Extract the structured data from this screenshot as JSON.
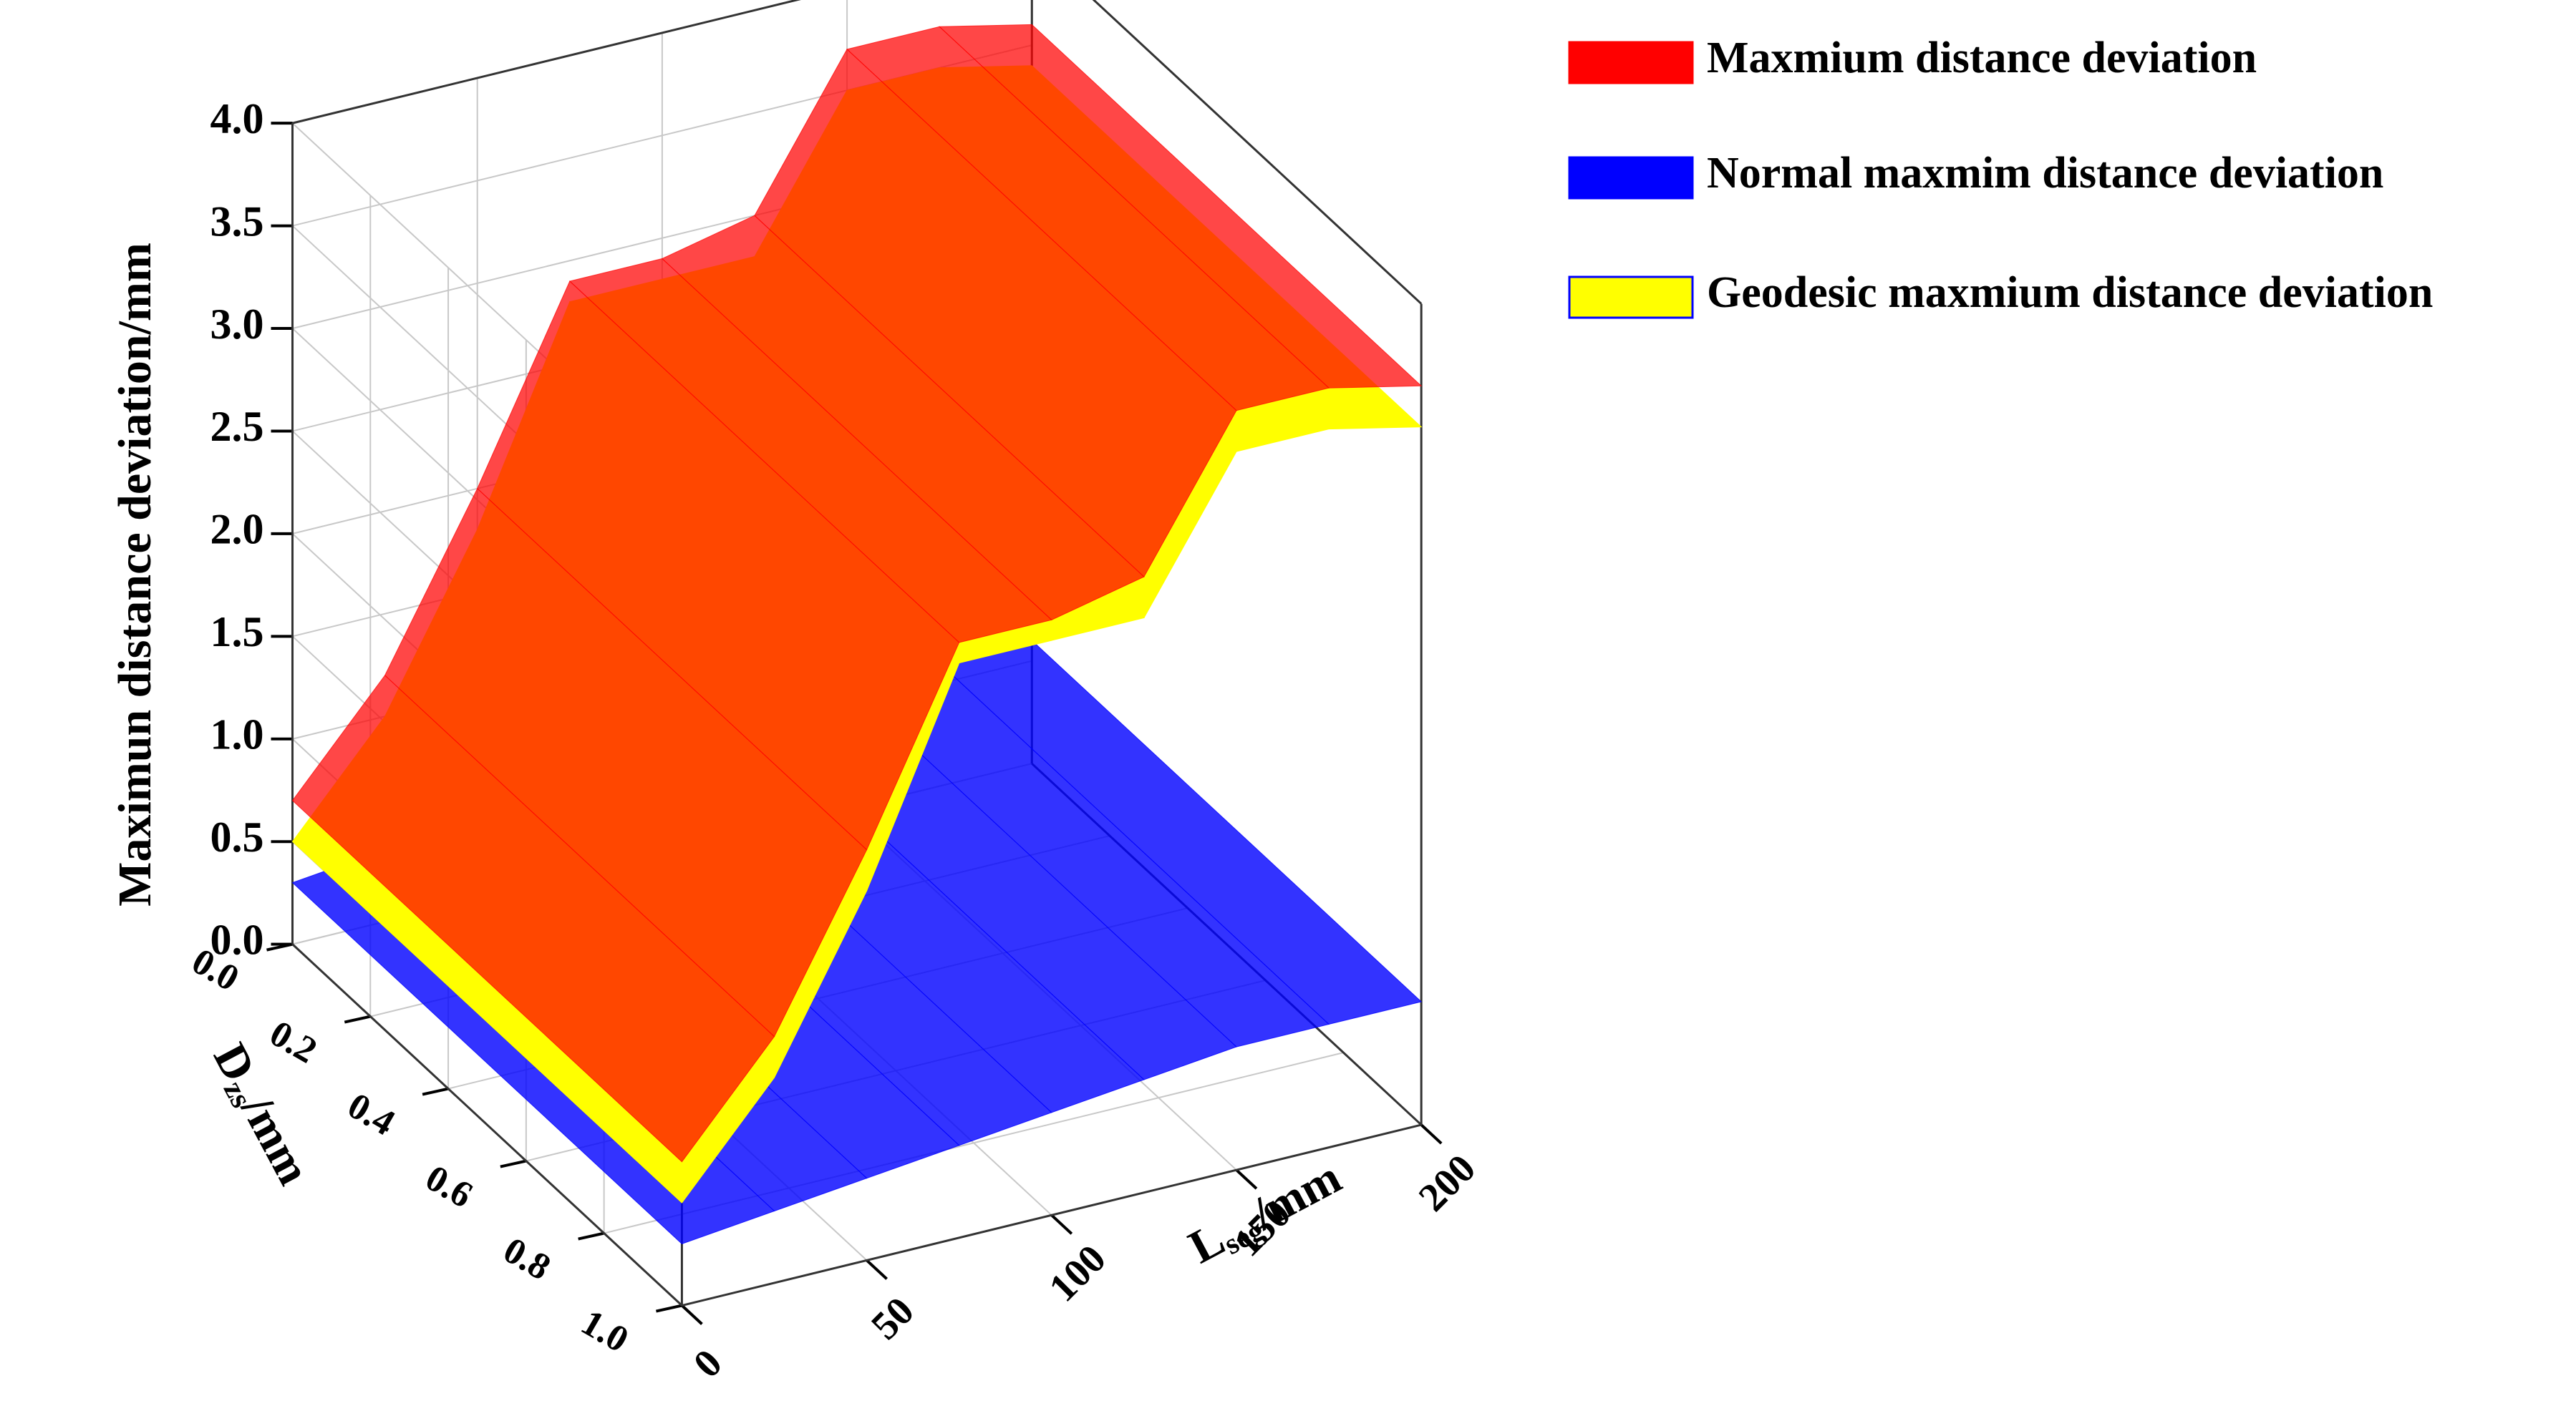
{
  "chart_data": {
    "type": "surface3d",
    "z_label": "Maximun distance deviation/mm",
    "x_label": {
      "text": "L",
      "subscript": "seg",
      "suffix": "/mm"
    },
    "y_label": {
      "text": "D",
      "subscript": "zs",
      "suffix": "/mm"
    },
    "x": [
      0,
      25,
      50,
      75,
      100,
      125,
      150,
      175,
      200
    ],
    "xlim": [
      0,
      200
    ],
    "xticks": [
      0,
      50,
      100,
      150,
      200
    ],
    "ylim": [
      0,
      1
    ],
    "yticks": [
      {
        "value": 0,
        "label": "0.0"
      },
      {
        "value": 0.2,
        "label": "0.2"
      },
      {
        "value": 0.4,
        "label": "0.4"
      },
      {
        "value": 0.6,
        "label": "0.6"
      },
      {
        "value": 0.8,
        "label": "0.8"
      },
      {
        "value": 1,
        "label": "1.0"
      }
    ],
    "zlim": [
      0,
      4
    ],
    "zticks": [
      {
        "value": 0,
        "label": "0.0"
      },
      {
        "value": 0.5,
        "label": "0.5"
      },
      {
        "value": 1,
        "label": "1.0"
      },
      {
        "value": 1.5,
        "label": "1.5"
      },
      {
        "value": 2,
        "label": "2.0"
      },
      {
        "value": 2.5,
        "label": "2.5"
      },
      {
        "value": 3,
        "label": "3.0"
      },
      {
        "value": 3.5,
        "label": "3.5"
      },
      {
        "value": 4,
        "label": "4.0"
      }
    ],
    "grid": true,
    "series": [
      {
        "name": "Maxmium distance deviation",
        "color": "#ff0000",
        "values": [
          0.7,
          1.2,
          2.0,
          2.9,
          2.9,
          3.0,
          3.7,
          3.7,
          3.6
        ]
      },
      {
        "name": "Normal maxmim distance deviation",
        "color": "#0000ff",
        "values": [
          0.3,
          0.35,
          0.4,
          0.45,
          0.5,
          0.55,
          0.6,
          0.6,
          0.6
        ]
      },
      {
        "name": "Geodesic maxmium distance deviation",
        "color": "#ffff00",
        "values": [
          0.5,
          1.0,
          1.8,
          2.8,
          2.8,
          2.8,
          3.5,
          3.5,
          3.4
        ]
      }
    ]
  }
}
